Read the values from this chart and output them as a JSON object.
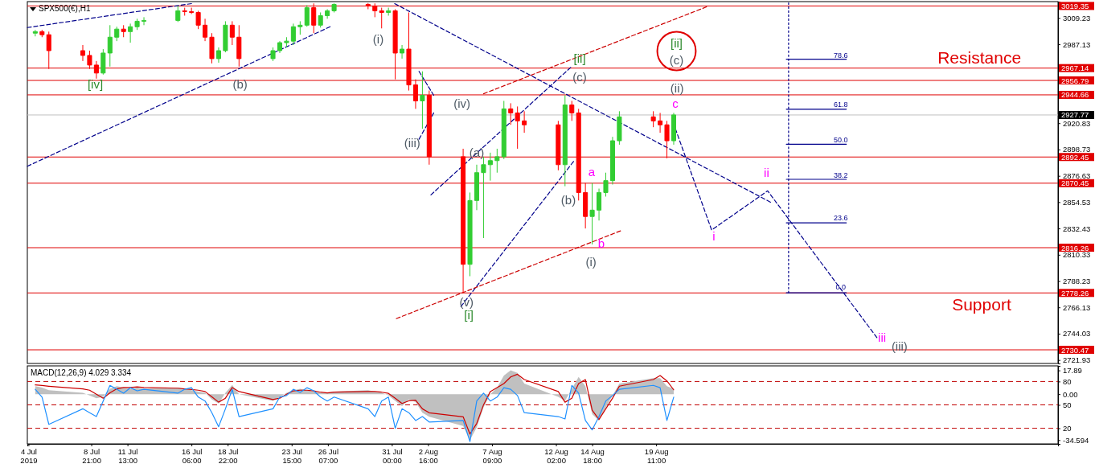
{
  "chart_data": [
    {
      "type": "candlestick",
      "title": "SPX500(€),H1",
      "tick_labels": "y",
      "xlim": [
        "2019-07-04T04:00",
        "2019-09-18T01:00"
      ],
      "ylim": [
        2719,
        3023
      ],
      "yticks": [
        3009.23,
        2987.13,
        2920.83,
        2898.73,
        2876.63,
        2854.53,
        2832.43,
        2810.33,
        2788.23,
        2766.13,
        2744.03,
        2721.93
      ],
      "x": [
        "2019-07-04T18:00",
        "2019-07-05T06:00",
        "2019-07-05T18:00",
        "2019-07-08T06:00",
        "2019-07-08T18:00",
        "2019-07-09T06:00",
        "2019-07-09T18:00",
        "2019-07-10T06:00",
        "2019-07-10T18:00",
        "2019-07-11T06:00",
        "2019-07-11T18:00",
        "2019-07-12T06:00",
        "2019-07-12T18:00",
        "2019-07-15T06:00",
        "2019-07-15T18:00",
        "2019-07-16T06:00",
        "2019-07-16T18:00",
        "2019-07-17T06:00",
        "2019-07-17T18:00",
        "2019-07-18T06:00",
        "2019-07-18T18:00",
        "2019-07-19T06:00",
        "2019-07-19T18:00",
        "2019-07-22T06:00",
        "2019-07-22T18:00",
        "2019-07-23T06:00",
        "2019-07-23T18:00",
        "2019-07-24T06:00",
        "2019-07-24T18:00",
        "2019-07-25T06:00",
        "2019-07-25T18:00",
        "2019-07-26T06:00",
        "2019-07-26T18:00",
        "2019-07-29T06:00",
        "2019-07-29T18:00",
        "2019-07-30T06:00",
        "2019-07-30T18:00",
        "2019-07-31T06:00",
        "2019-07-31T18:00",
        "2019-08-01T06:00",
        "2019-08-01T18:00",
        "2019-08-02T06:00",
        "2019-08-02T18:00",
        "2019-08-05T06:00",
        "2019-08-05T18:00",
        "2019-08-06T06:00",
        "2019-08-06T18:00",
        "2019-08-07T06:00",
        "2019-08-07T18:00",
        "2019-08-08T06:00",
        "2019-08-08T18:00",
        "2019-08-09T06:00",
        "2019-08-09T18:00",
        "2019-08-12T06:00",
        "2019-08-12T18:00",
        "2019-08-13T06:00",
        "2019-08-13T18:00",
        "2019-08-14T06:00",
        "2019-08-14T18:00",
        "2019-08-15T06:00",
        "2019-08-15T18:00",
        "2019-08-16T06:00",
        "2019-08-16T18:00",
        "2019-08-19T06:00",
        "2019-08-19T18:00",
        "2019-08-20T06:00",
        "2019-08-20T18:00"
      ],
      "ohlc": [
        [
          2996.5,
          2999.2,
          2993.8,
          2997.8
        ],
        [
          2997.8,
          2999.2,
          2993.1,
          2995.2
        ],
        [
          2995.2,
          2997.8,
          2966.4,
          2981.8
        ],
        [
          2981.8,
          2986.5,
          2973.1,
          2977.8
        ],
        [
          2977.8,
          2981.8,
          2966.4,
          2969.7
        ],
        [
          2969.7,
          2973.1,
          2958.3,
          2963.0
        ],
        [
          2963.0,
          2983.1,
          2961.7,
          2979.8
        ],
        [
          2979.8,
          3003.2,
          2968.4,
          2993.1
        ],
        [
          2993.1,
          3001.9,
          2989.8,
          2999.9
        ],
        [
          2999.9,
          3003.2,
          2993.1,
          2997.8
        ],
        [
          2997.8,
          3004.5,
          2988.5,
          3001.9
        ],
        [
          3001.9,
          3008.6,
          2999.2,
          3006.5
        ],
        [
          3006.5,
          3009.9,
          3003.2,
          3007.2
        ],
        [
          3007.2,
          3019.3,
          3005.9,
          3015.3
        ],
        [
          3015.3,
          3017.9,
          3011.2,
          3014.6
        ],
        [
          3014.6,
          3017.9,
          3012.6,
          3013.9
        ],
        [
          3013.9,
          3015.3,
          2999.9,
          3003.2
        ],
        [
          3003.2,
          3008.6,
          2989.8,
          2993.1
        ],
        [
          2993.1,
          2996.5,
          2971.1,
          2975.1
        ],
        [
          2975.1,
          2984.5,
          2971.7,
          2981.8
        ],
        [
          2981.8,
          3006.5,
          2980.4,
          3003.2
        ],
        [
          3003.2,
          3006.5,
          2986.5,
          2993.1
        ],
        [
          2993.1,
          3003.2,
          2968.4,
          2975.1
        ],
        [
          2975.1,
          2984.5,
          2973.1,
          2981.8
        ],
        [
          2981.8,
          2989.8,
          2979.8,
          2988.5
        ],
        [
          2988.5,
          2993.1,
          2984.5,
          2989.8
        ],
        [
          2989.8,
          3004.5,
          2986.5,
          3001.9
        ],
        [
          3001.9,
          3006.5,
          2995.2,
          3003.2
        ],
        [
          3003.2,
          3020.0,
          3001.9,
          3017.9
        ],
        [
          3017.9,
          3021.5,
          2996.5,
          3003.2
        ],
        [
          3003.2,
          3013.9,
          3001.2,
          3011.2
        ],
        [
          3011.2,
          3016.6,
          3008.6,
          3015.3
        ],
        [
          3015.3,
          3021.5,
          3013.9,
          3020.6
        ],
        [
          3020.6,
          3021.8,
          3016.6,
          3019.3
        ],
        [
          3019.3,
          3021.5,
          3009.9,
          3015.3
        ],
        [
          3015.3,
          3017.9,
          3000.5,
          3013.9
        ],
        [
          3013.9,
          3017.9,
          3011.2,
          3015.3
        ],
        [
          3015.3,
          3016.6,
          2957.7,
          2979.8
        ],
        [
          2979.8,
          2986.5,
          2975.1,
          2983.1
        ],
        [
          2983.1,
          3013.9,
          2948.3,
          2953.0
        ],
        [
          2953.0,
          2957.7,
          2932.9,
          2939.6
        ],
        [
          2939.6,
          2964.4,
          2916.2,
          2944.3
        ],
        [
          2944.3,
          2948.3,
          2886.0,
          2892.7
        ],
        [
          2892.7,
          2899.4,
          2778.3,
          2802.3
        ],
        [
          2802.3,
          2862.6,
          2792.3,
          2855.9
        ],
        [
          2855.9,
          2886.0,
          2847.8,
          2879.3
        ],
        [
          2879.3,
          2892.7,
          2824.4,
          2886.0
        ],
        [
          2886.0,
          2896.1,
          2872.6,
          2889.4
        ],
        [
          2889.4,
          2899.4,
          2879.3,
          2892.7
        ],
        [
          2892.7,
          2939.6,
          2890.7,
          2932.9
        ],
        [
          2932.9,
          2937.6,
          2919.5,
          2929.5
        ],
        [
          2929.5,
          2934.9,
          2899.4,
          2922.8
        ],
        [
          2922.8,
          2930.9,
          2912.8,
          2919.5
        ],
        [
          2919.5,
          2922.8,
          2881.3,
          2886.0
        ],
        [
          2886.0,
          2944.3,
          2867.9,
          2936.2
        ],
        [
          2936.2,
          2939.6,
          2922.8,
          2929.5
        ],
        [
          2929.5,
          2932.9,
          2855.9,
          2862.6
        ],
        [
          2862.6,
          2870.6,
          2832.4,
          2842.5
        ],
        [
          2842.5,
          2870.6,
          2819.0,
          2847.8
        ],
        [
          2847.8,
          2865.9,
          2839.1,
          2862.6
        ],
        [
          2862.6,
          2879.3,
          2859.2,
          2872.6
        ],
        [
          2872.6,
          2909.4,
          2869.3,
          2906.1
        ],
        [
          2906.1,
          2930.9,
          2902.8,
          2926.2
        ],
        [
          2926.2,
          2930.9,
          2917.5,
          2922.8
        ],
        [
          2922.8,
          2929.5,
          2912.8,
          2919.5
        ],
        [
          2919.5,
          2922.8,
          2891.4,
          2906.1
        ],
        [
          2906.1,
          2929.5,
          2902.8,
          2927.8
        ]
      ],
      "colors": [
        "#32cd32",
        "#ff0000",
        "#ff0000",
        "#ff0000",
        "#ff0000",
        "#ff0000",
        "#32cd32",
        "#32cd32",
        "#32cd32",
        "#ff0000",
        "#32cd32",
        "#32cd32",
        "#32cd32",
        "#32cd32",
        "#ff0000",
        "#ff0000",
        "#ff0000",
        "#ff0000",
        "#ff0000",
        "#32cd32",
        "#32cd32",
        "#ff0000",
        "#ff0000",
        "#32cd32",
        "#32cd32",
        "#32cd32",
        "#32cd32",
        "#32cd32",
        "#32cd32",
        "#ff0000",
        "#32cd32",
        "#32cd32",
        "#32cd32",
        "#ff0000",
        "#ff0000",
        "#ff0000",
        "#32cd32",
        "#ff0000",
        "#32cd32",
        "#ff0000",
        "#ff0000",
        "#32cd32",
        "#ff0000",
        "#ff0000",
        "#32cd32",
        "#32cd32",
        "#32cd32",
        "#32cd32",
        "#32cd32",
        "#32cd32",
        "#ff0000",
        "#ff0000",
        "#ff0000",
        "#ff0000",
        "#32cd32",
        "#ff0000",
        "#ff0000",
        "#ff0000",
        "#32cd32",
        "#32cd32",
        "#32cd32",
        "#32cd32",
        "#32cd32",
        "#ff0000",
        "#ff0000",
        "#ff0000",
        "#32cd32"
      ],
      "ref_lines": [
        {
          "axis": "y",
          "value": 3019.35,
          "label": "3019.35",
          "color": "#e00000"
        },
        {
          "axis": "y",
          "value": 2967.14,
          "label": "2967.14",
          "color": "#e00000"
        },
        {
          "axis": "y",
          "value": 2956.79,
          "label": "2956.79",
          "color": "#e00000"
        },
        {
          "axis": "y",
          "value": 2944.66,
          "label": "2944.66",
          "color": "#e00000"
        },
        {
          "axis": "y",
          "value": 2927.77,
          "label": "2927.77",
          "color": "#c0c0c0"
        },
        {
          "axis": "y",
          "value": 2892.45,
          "label": "2892.45",
          "color": "#e00000"
        },
        {
          "axis": "y",
          "value": 2870.45,
          "label": "2870.45",
          "color": "#e00000"
        },
        {
          "axis": "y",
          "value": 2816.26,
          "label": "2816.26",
          "color": "#e00000"
        },
        {
          "axis": "y",
          "value": 2778.26,
          "label": "2778.26",
          "color": "#e00000"
        },
        {
          "axis": "y",
          "value": 2730.47,
          "label": "2730.47",
          "color": "#e00000"
        }
      ],
      "series": [
        {
          "type": "line",
          "color": "#00008b",
          "line_style": "dashed",
          "x": [
            "2019-07-04T04:00",
            "2019-07-16T06:00"
          ],
          "values": [
            3001.2,
            3021.3
          ]
        },
        {
          "type": "line",
          "color": "#00008b",
          "line_style": "dashed",
          "x": [
            "2019-07-04T04:00",
            "2019-07-26T11:00"
          ],
          "values": [
            2884.7,
            3001.9
          ]
        },
        {
          "type": "line",
          "color": "#00008b",
          "line_style": "dashed",
          "x": [
            "2019-07-31T05:00",
            "2019-08-27T21:00"
          ],
          "values": [
            3021.3,
            2854.5
          ]
        },
        {
          "type": "line",
          "color": "#00008b",
          "line_style": "dashed",
          "x": [
            "2019-08-02T00:00",
            "2019-08-03T02:00"
          ],
          "values": [
            2964.4,
            2944.3
          ]
        },
        {
          "type": "line",
          "color": "#00008b",
          "line_style": "dashed",
          "x": [
            "2019-08-03T02:00",
            "2019-08-02T00:00"
          ],
          "values": [
            2929.5,
            2907.4
          ]
        },
        {
          "type": "line",
          "color": "#00008b",
          "line_style": "dashed",
          "x": [
            "2019-08-05T02:00",
            "2019-08-13T09:00"
          ],
          "values": [
            2766.8,
            2888.7
          ]
        },
        {
          "type": "line",
          "color": "#00008b",
          "line_style": "dashed",
          "x": [
            "2019-08-02T21:00",
            "2019-08-13T04:00"
          ],
          "values": [
            2860.6,
            2967.7
          ]
        },
        {
          "type": "line",
          "color": "#cc0000",
          "line_style": "dashed",
          "x": [
            "2019-07-31T08:00",
            "2019-08-16T20:00"
          ],
          "values": [
            2756.7,
            2830.4
          ]
        },
        {
          "type": "line",
          "color": "#cc0000",
          "line_style": "dashed",
          "x": [
            "2019-08-06T18:00",
            "2019-08-23T04:00"
          ],
          "values": [
            2945.6,
            3018.6
          ]
        },
        {
          "type": "line",
          "color": "#00008b",
          "line_style": "dashed",
          "x": [
            "2019-08-20T21:00",
            "2019-08-23T13:00",
            "2019-08-27T16:00",
            "2019-09-04T17:00"
          ],
          "values": [
            2916.2,
            2831.1,
            2864.0,
            2740.7
          ]
        },
        {
          "type": "line",
          "color": "#00008b",
          "line_style": "dotted",
          "x": [
            "2019-08-29T05:00",
            "2019-08-29T05:00"
          ],
          "values": [
            3022,
            2778.3
          ]
        },
        {
          "type": "line",
          "color": "#00008b",
          "line_style": "solid",
          "x": [
            "2019-08-29T01:00",
            "2019-09-02T11:00"
          ],
          "values": [
            2974.6,
            2974.6
          ]
        },
        {
          "type": "line",
          "color": "#00008b",
          "line_style": "solid",
          "x": [
            "2019-08-29T01:00",
            "2019-09-02T11:00"
          ],
          "values": [
            2932.6,
            2932.6
          ]
        },
        {
          "type": "line",
          "color": "#00008b",
          "line_style": "solid",
          "x": [
            "2019-08-29T01:00",
            "2019-09-02T11:00"
          ],
          "values": [
            2903.2,
            2903.2
          ]
        },
        {
          "type": "line",
          "color": "#00008b",
          "line_style": "solid",
          "x": [
            "2019-08-29T01:00",
            "2019-09-02T11:00"
          ],
          "values": [
            2873.7,
            2873.7
          ]
        },
        {
          "type": "line",
          "color": "#00008b",
          "line_style": "solid",
          "x": [
            "2019-08-29T01:00",
            "2019-09-02T11:00"
          ],
          "values": [
            2837.2,
            2837.2
          ]
        },
        {
          "type": "line",
          "color": "#00008b",
          "line_style": "solid",
          "x": [
            "2019-08-29T01:00",
            "2019-09-02T11:00"
          ],
          "values": [
            2778.3,
            2778.3
          ]
        }
      ],
      "annotations": [
        "[iv]",
        "(b)",
        "(i)",
        "(iii)",
        "(iv)",
        "(v)",
        "[i]",
        "(a)",
        "[ii]",
        "(c)",
        "(b)",
        "a",
        "(i)",
        "b",
        "[ii]",
        "(c)",
        "(ii)",
        "c",
        "i",
        "ii",
        "iii",
        "(iii)",
        "78.6",
        "61.8",
        "50.0",
        "38.2",
        "23.6",
        "0.0",
        "Resistance",
        "Support"
      ]
    },
    {
      "type": "line",
      "title": "MACD(12,26,9) 4.029 3.334",
      "xlim": [
        "2019-07-04T04:00",
        "2019-09-18T01:00"
      ],
      "xticks": [
        {
          "value": "2019-07-04T06:00",
          "label": "4 Jul 2019"
        },
        {
          "value": "2019-07-08T21:00",
          "label": "8 Jul 21:00"
        },
        {
          "value": "2019-07-11T13:00",
          "label": "11 Jul 13:00"
        },
        {
          "value": "2019-07-16T06:00",
          "label": "16 Jul 06:00"
        },
        {
          "value": "2019-07-18T22:00",
          "label": "18 Jul 22:00"
        },
        {
          "value": "2019-07-23T15:00",
          "label": "23 Jul 15:00"
        },
        {
          "value": "2019-07-26T07:00",
          "label": "26 Jul 07:00"
        },
        {
          "value": "2019-07-31T00:00",
          "label": "31 Jul 00:00"
        },
        {
          "value": "2019-08-02T16:00",
          "label": "2 Aug 16:00"
        },
        {
          "value": "2019-08-07T09:00",
          "label": "7 Aug 09:00"
        },
        {
          "value": "2019-08-12T02:00",
          "label": "12 Aug 02:00"
        },
        {
          "value": "2019-08-14T18:00",
          "label": "14 Aug 18:00"
        },
        {
          "value": "2019-08-19T11:00",
          "label": "19 Aug 11:00"
        }
      ],
      "ylim": [
        -37.4,
        21.3
      ],
      "yticks": [
        17.89,
        {
          "value": 0,
          "label": "0.00"
        },
        -34.594
      ],
      "y2lim": [
        0,
        100
      ],
      "y2ticks": [
        80,
        50,
        20
      ],
      "ref_lines": [
        {
          "axis": "y2",
          "value": 80,
          "color": "#c00000",
          "line_style": "dashed"
        },
        {
          "axis": "y2",
          "value": 50,
          "color": "#c00000",
          "line_style": "dashed"
        },
        {
          "axis": "y2",
          "value": 20,
          "color": "#c00000",
          "line_style": "dashed"
        }
      ],
      "x": [
        "2019-07-04T18:00",
        "2019-07-05T06:00",
        "2019-07-05T18:00",
        "2019-07-08T06:00",
        "2019-07-08T18:00",
        "2019-07-09T06:00",
        "2019-07-09T18:00",
        "2019-07-10T06:00",
        "2019-07-10T18:00",
        "2019-07-11T06:00",
        "2019-07-11T18:00",
        "2019-07-12T06:00",
        "2019-07-12T18:00",
        "2019-07-15T06:00",
        "2019-07-15T18:00",
        "2019-07-16T06:00",
        "2019-07-16T18:00",
        "2019-07-17T06:00",
        "2019-07-17T18:00",
        "2019-07-18T06:00",
        "2019-07-18T18:00",
        "2019-07-19T06:00",
        "2019-07-19T18:00",
        "2019-07-22T06:00",
        "2019-07-22T18:00",
        "2019-07-23T06:00",
        "2019-07-23T18:00",
        "2019-07-24T06:00",
        "2019-07-24T18:00",
        "2019-07-25T06:00",
        "2019-07-25T18:00",
        "2019-07-26T06:00",
        "2019-07-26T18:00",
        "2019-07-29T06:00",
        "2019-07-29T18:00",
        "2019-07-30T06:00",
        "2019-07-30T18:00",
        "2019-07-31T06:00",
        "2019-07-31T18:00",
        "2019-08-01T06:00",
        "2019-08-01T18:00",
        "2019-08-02T06:00",
        "2019-08-02T18:00",
        "2019-08-05T06:00",
        "2019-08-05T18:00",
        "2019-08-06T06:00",
        "2019-08-06T18:00",
        "2019-08-07T06:00",
        "2019-08-07T18:00",
        "2019-08-08T06:00",
        "2019-08-08T18:00",
        "2019-08-09T06:00",
        "2019-08-09T18:00",
        "2019-08-12T06:00",
        "2019-08-12T18:00",
        "2019-08-13T06:00",
        "2019-08-13T18:00",
        "2019-08-14T06:00",
        "2019-08-14T18:00",
        "2019-08-15T06:00",
        "2019-08-15T18:00",
        "2019-08-16T06:00",
        "2019-08-16T18:00",
        "2019-08-19T06:00",
        "2019-08-19T18:00",
        "2019-08-20T06:00",
        "2019-08-20T18:00"
      ],
      "series": [
        {
          "type": "area",
          "color": "#c0c0c0",
          "values": [
            6,
            5,
            3,
            1,
            -1,
            -3,
            -2,
            4,
            6,
            5,
            4,
            5,
            4,
            5,
            4,
            3,
            2,
            1,
            -4,
            -7,
            1,
            7,
            0,
            -5,
            -2,
            1,
            3,
            4,
            3,
            2,
            1,
            1,
            2,
            3,
            2,
            1,
            -1,
            -5,
            -9,
            -4,
            -6,
            -14,
            -17,
            -24,
            -34.6,
            -25,
            -10,
            0,
            5,
            14,
            17.9,
            16,
            8,
            -2,
            -5,
            4,
            13,
            6,
            -15,
            -20,
            -10,
            -1,
            8,
            12,
            12,
            6,
            4
          ]
        },
        {
          "type": "line",
          "color": "#cc0000",
          "values": [
            7,
            6.5,
            6,
            4,
            3,
            0,
            -3,
            1,
            4,
            5,
            5,
            5.5,
            5,
            4.5,
            4,
            3.5,
            3,
            2,
            -2,
            -6,
            -3,
            5,
            2,
            -4,
            -3,
            0,
            2.5,
            3,
            3,
            2.5,
            1.5,
            1,
            1.5,
            2,
            2,
            1.5,
            0.6,
            -3,
            -7,
            -5,
            -4.5,
            -11,
            -14,
            -17,
            -30,
            -22,
            -8,
            2,
            5,
            8,
            13,
            15,
            11,
            2,
            -6,
            -3,
            8,
            11,
            -12,
            -19,
            -11,
            -3,
            6,
            11,
            14,
            10,
            3.3
          ]
        },
        {
          "type": "line",
          "color": "#1e90ff",
          "axis": "y2",
          "values": [
            70,
            60,
            25,
            45,
            40,
            35,
            55,
            75,
            70,
            65,
            72,
            68,
            70,
            65,
            70,
            72,
            60,
            55,
            40,
            22,
            45,
            70,
            35,
            45,
            60,
            62,
            70,
            66,
            72,
            68,
            60,
            55,
            60,
            45,
            35,
            55,
            60,
            20,
            45,
            40,
            30,
            35,
            28,
            30,
            3,
            55,
            65,
            55,
            60,
            72,
            70,
            62,
            40,
            35,
            32,
            75,
            65,
            30,
            18,
            35,
            55,
            62,
            70,
            75,
            72,
            30,
            60
          ]
        }
      ]
    }
  ]
}
